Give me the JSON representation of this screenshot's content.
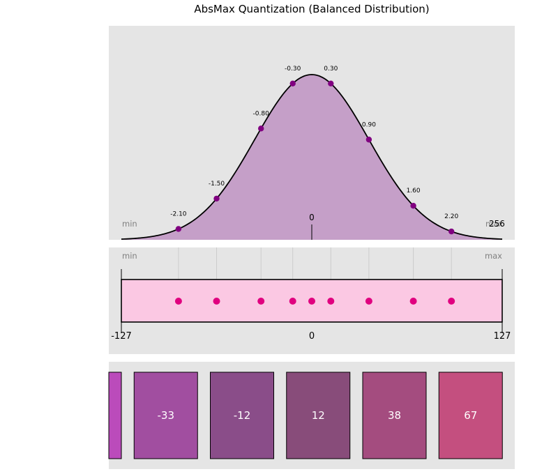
{
  "title": "AbsMax Quantization (Balanced Distribution)",
  "colors": {
    "panel_bg": "#e5e5e5",
    "curve_fill": "#c59fc8",
    "curve_line": "#000000",
    "point": "#800080",
    "track_fill": "#fbc8e3",
    "marker": "#e0007f",
    "guide_line": "#cccccc"
  },
  "distribution": {
    "min_label": "min",
    "max_label": "max",
    "right_count": "256",
    "center_label": "0",
    "points": [
      {
        "value": -2.1,
        "label": "-2.10"
      },
      {
        "value": -1.5,
        "label": "-1.50"
      },
      {
        "value": -0.8,
        "label": "-0.80"
      },
      {
        "value": -0.3,
        "label": "-0.30"
      },
      {
        "value": 0.3,
        "label": "0.30"
      },
      {
        "value": 0.9,
        "label": "0.90"
      },
      {
        "value": 1.6,
        "label": "1.60"
      },
      {
        "value": 2.2,
        "label": "2.20"
      }
    ],
    "x_range": [
      -3.0,
      3.0
    ],
    "sigma": 0.9
  },
  "quant_axis": {
    "min_label": "min",
    "max_label": "max",
    "left_tick": "-127",
    "center_tick": "0",
    "right_tick": "127",
    "markers": [
      -2.1,
      -1.5,
      -0.8,
      -0.3,
      0.0,
      0.3,
      0.9,
      1.6,
      2.2
    ]
  },
  "quantized_values": [
    {
      "label": "",
      "color": "#bb4bbb"
    },
    {
      "label": "-33",
      "color": "#a14ea0"
    },
    {
      "label": "-12",
      "color": "#8a4d89"
    },
    {
      "label": "12",
      "color": "#884c7a"
    },
    {
      "label": "38",
      "color": "#a44c7f"
    },
    {
      "label": "67",
      "color": "#c44f7f"
    }
  ]
}
